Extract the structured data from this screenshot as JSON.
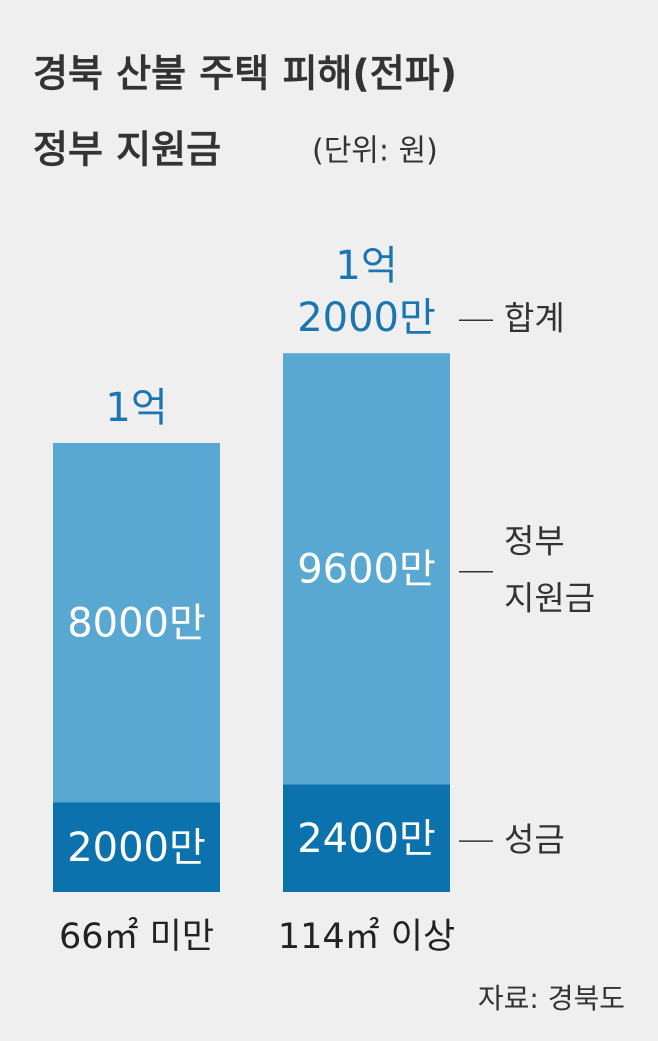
{
  "chart_data": {
    "type": "stacked_bar",
    "title": [
      "경북 산불 주택 피해(전파)",
      "정부 지원금"
    ],
    "subtitle": "(단위: 원)",
    "categories": [
      "66㎡ 미만",
      "114㎡ 이상"
    ],
    "series": [
      {
        "name": "성금",
        "color": "#0b72ad",
        "values": [
          2000,
          2400
        ],
        "value_labels": [
          "2000만",
          "2400만"
        ]
      },
      {
        "name": "정부 지원금",
        "color": "#58a8d2",
        "values": [
          8000,
          9600
        ],
        "value_labels": [
          "8000만",
          "9600만"
        ]
      }
    ],
    "totals": {
      "name": "합계",
      "values": [
        10000,
        12000
      ],
      "value_labels": [
        "1억",
        "1억 2000만"
      ]
    },
    "source": "자료: 경북도"
  }
}
